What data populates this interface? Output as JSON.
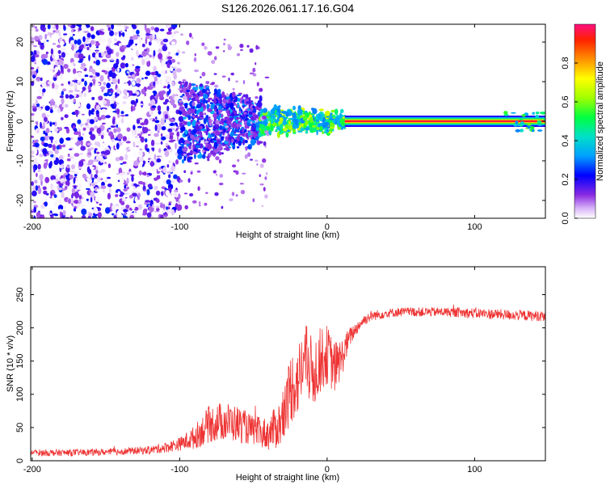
{
  "title": "S126.2026.061.17.16.G04",
  "chart_data": [
    {
      "type": "heatmap",
      "xlabel": "Height of straight line (km)",
      "ylabel": "Frequency (Hz)",
      "xlim": [
        -201,
        148
      ],
      "ylim": [
        -24.5,
        24.5
      ],
      "xticks": [
        -200,
        -100,
        0,
        100
      ],
      "yticks": [
        20,
        10,
        0,
        -10,
        -20
      ],
      "xtick_labels": [
        "-200",
        "-100",
        "0",
        "100"
      ],
      "ytick_labels": [
        "20",
        "10",
        "0",
        "-10",
        "-20"
      ],
      "colorbar": {
        "label": "Normalized spectral amplitude",
        "range": [
          0,
          1
        ],
        "ticks": [
          0.0,
          0.2,
          0.4,
          0.6,
          0.8
        ],
        "tick_labels": [
          "0.0",
          "0.2",
          "0.4",
          "0.6",
          "0.8"
        ]
      },
      "regions": [
        {
          "x": [
            -201,
            -100
          ],
          "description": "scattered noise speckle across all frequencies",
          "amplitude": [
            0.0,
            0.25
          ]
        },
        {
          "x": [
            -100,
            -45
          ],
          "description": "dense noise concentrated within ±10 Hz",
          "amplitude": [
            0.1,
            0.35
          ]
        },
        {
          "x": [
            -45,
            12
          ],
          "description": "signal converging near 0 Hz",
          "amplitude": [
            0.3,
            0.7
          ]
        },
        {
          "x": [
            12,
            148
          ],
          "description": "steady carrier line at 0 Hz",
          "amplitude": [
            0.8,
            1.0
          ]
        }
      ],
      "carrier": {
        "frequency": 0.0,
        "x_start": 12,
        "x_end": 148
      }
    },
    {
      "type": "line",
      "xlabel": "Height of straight line (km)",
      "ylabel": "SNR (10 * v/v)",
      "xlim": [
        -201,
        148
      ],
      "ylim": [
        0,
        292
      ],
      "xticks": [
        -200,
        -100,
        0,
        100
      ],
      "yticks": [
        0,
        50,
        100,
        150,
        200,
        250
      ],
      "xtick_labels": [
        "-200",
        "-100",
        "0",
        "100"
      ],
      "ytick_labels": [
        "0",
        "50",
        "100",
        "150",
        "200",
        "250"
      ],
      "series": [
        {
          "name": "SNR",
          "color": "#ee3333",
          "x": [
            -201,
            -180,
            -150,
            -120,
            -110,
            -100,
            -90,
            -80,
            -70,
            -60,
            -50,
            -40,
            -30,
            -25,
            -20,
            -15,
            -10,
            -5,
            0,
            5,
            10,
            15,
            20,
            25,
            30,
            40,
            50,
            60,
            80,
            100,
            120,
            140,
            148
          ],
          "y": [
            12,
            12,
            13,
            16,
            20,
            25,
            35,
            55,
            60,
            55,
            45,
            40,
            60,
            110,
            120,
            155,
            130,
            150,
            160,
            140,
            155,
            185,
            200,
            212,
            218,
            222,
            224,
            224,
            224,
            222,
            220,
            218,
            218
          ],
          "noise": [
            5,
            5,
            5,
            6,
            8,
            10,
            18,
            28,
            30,
            28,
            22,
            25,
            40,
            55,
            55,
            55,
            55,
            50,
            45,
            40,
            30,
            15,
            10,
            8,
            8,
            7,
            7,
            7,
            7,
            8,
            8,
            8,
            8
          ]
        }
      ]
    }
  ]
}
